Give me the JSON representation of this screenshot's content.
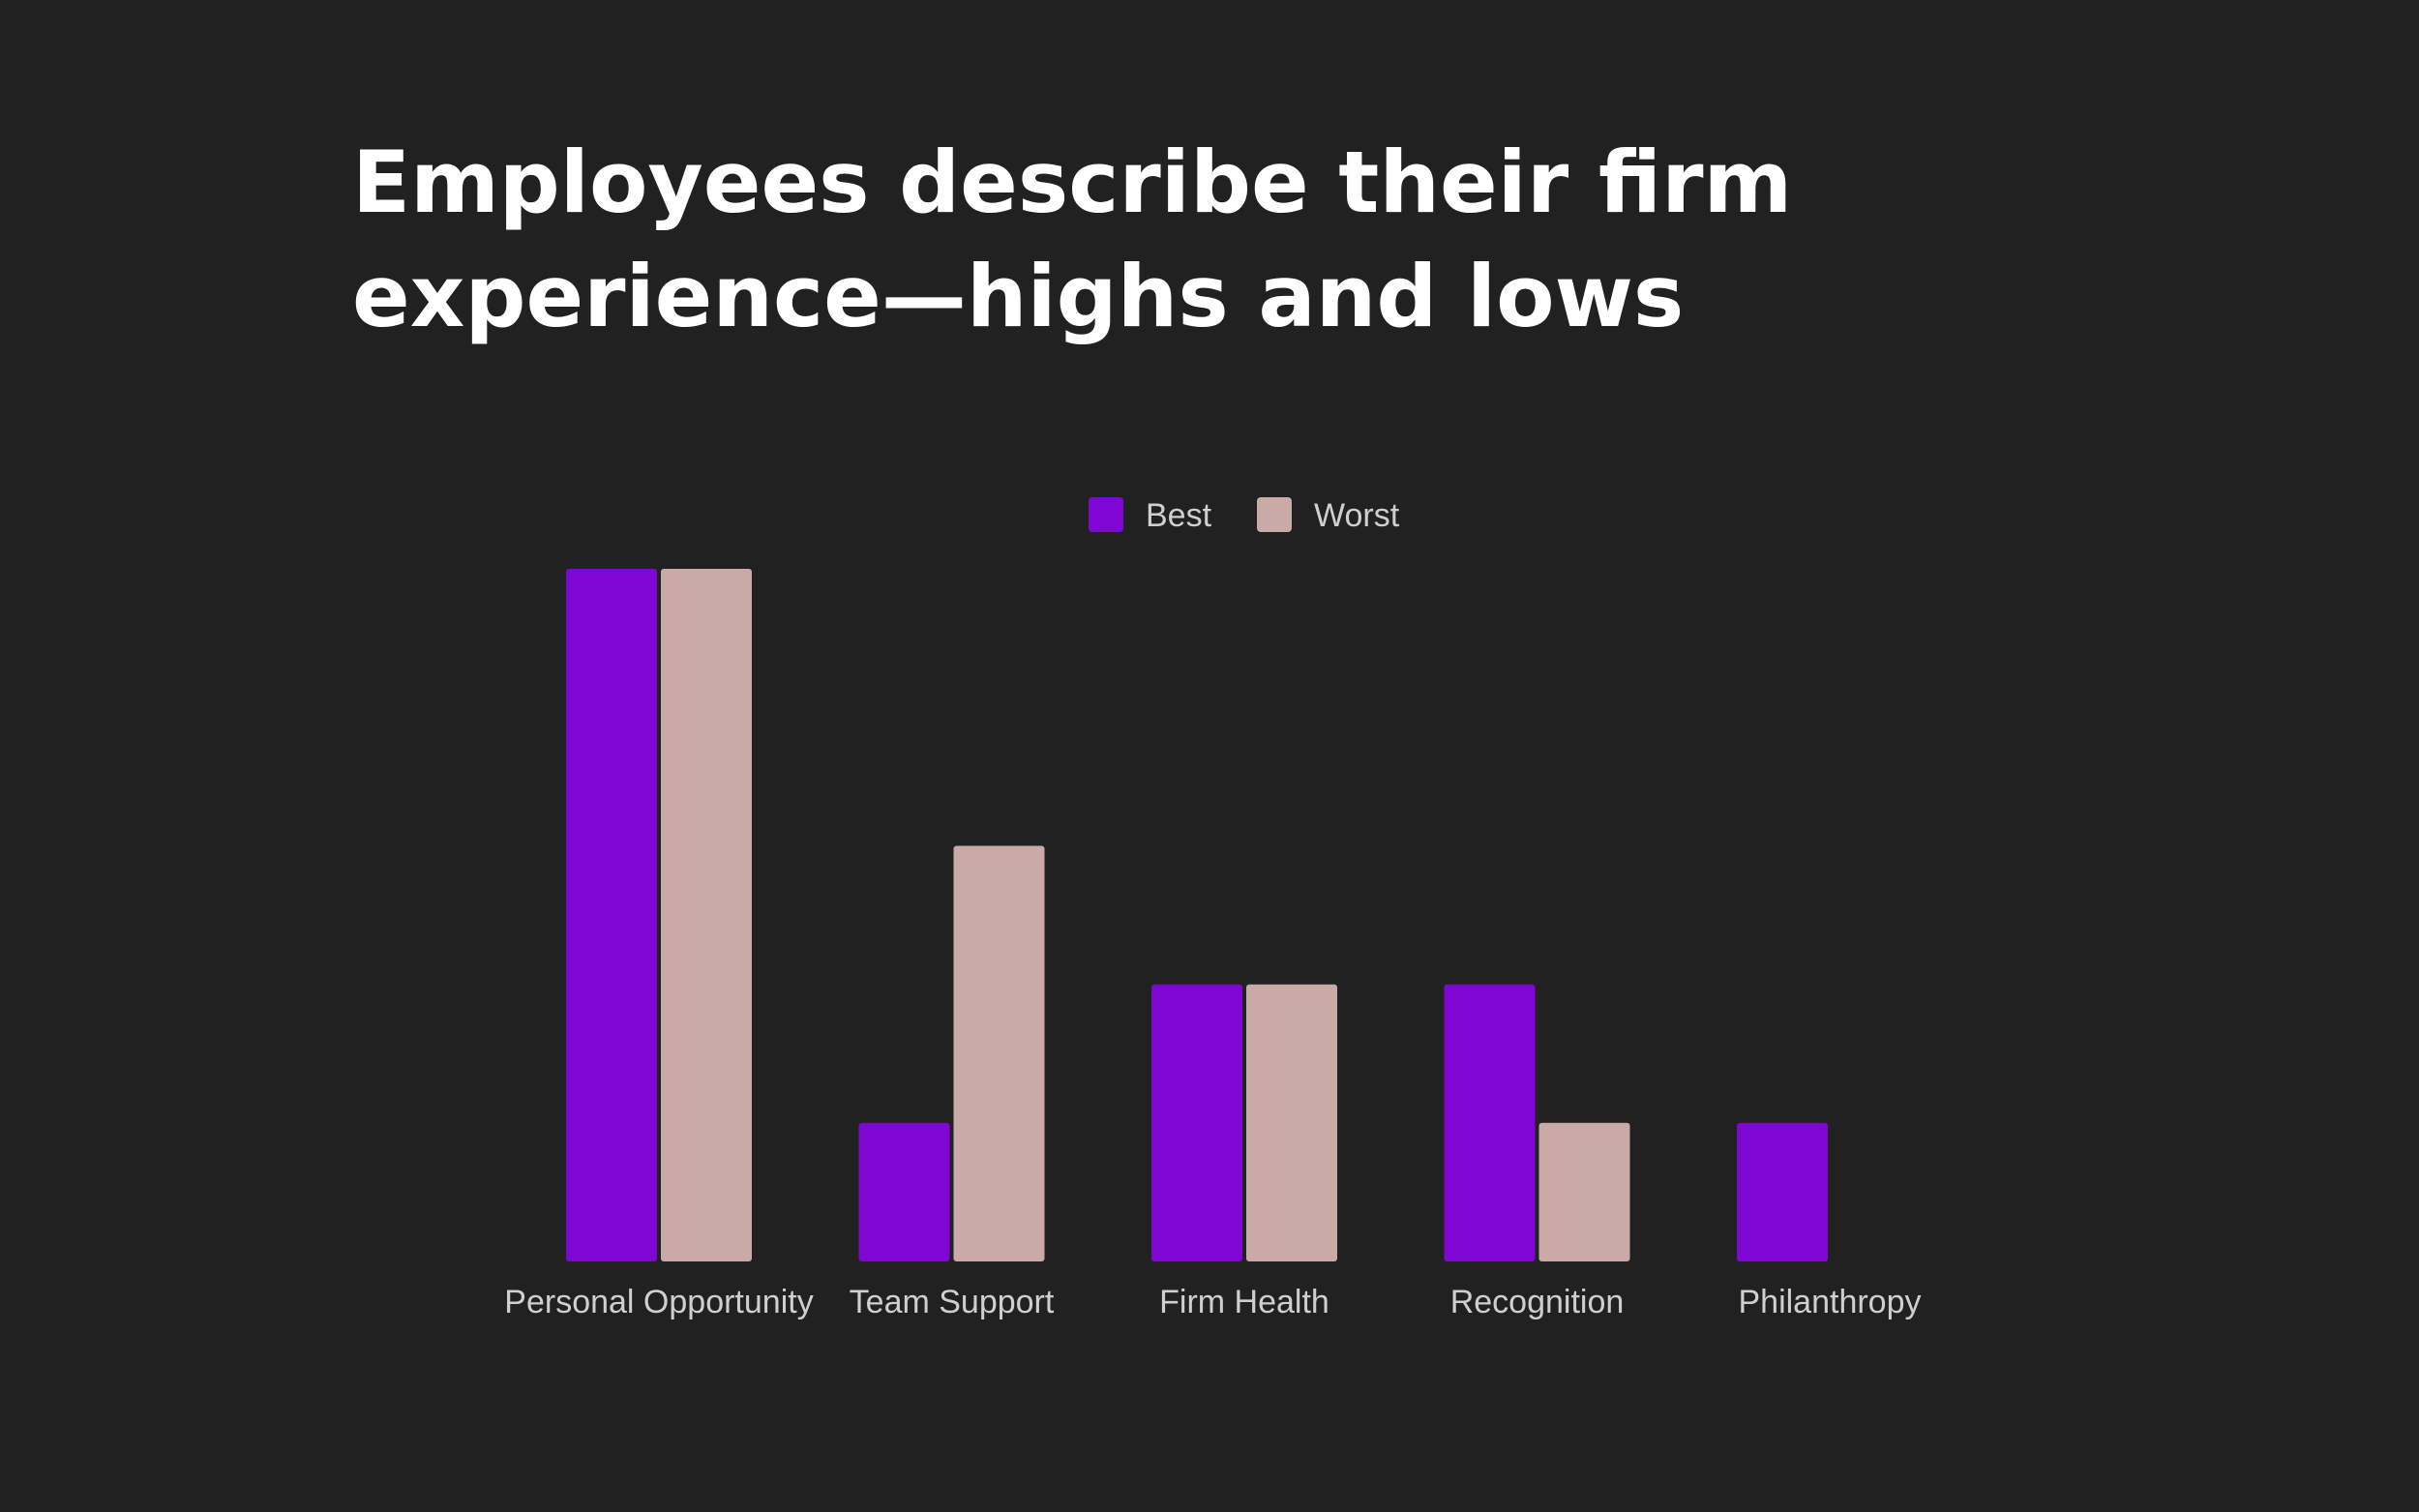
{
  "title_lines": [
    "Employees describe their firm",
    "experience—highs and lows"
  ],
  "chart_data": {
    "type": "bar",
    "title": "Employees describe their firm experience—highs and lows",
    "xlabel": "",
    "ylabel": "",
    "categories": [
      "Personal Opportunity",
      "Team Support",
      "Firm Health",
      "Recognition",
      "Philanthropy"
    ],
    "series": [
      {
        "name": "Best",
        "color": "#7e07d4",
        "values": [
          5,
          1,
          2,
          2,
          1
        ]
      },
      {
        "name": "Worst",
        "color": "#c9aaa7",
        "values": [
          5,
          3,
          2,
          1,
          0
        ]
      }
    ],
    "ylim": [
      0,
      5
    ],
    "grid": false,
    "legend_position": "top-center"
  }
}
